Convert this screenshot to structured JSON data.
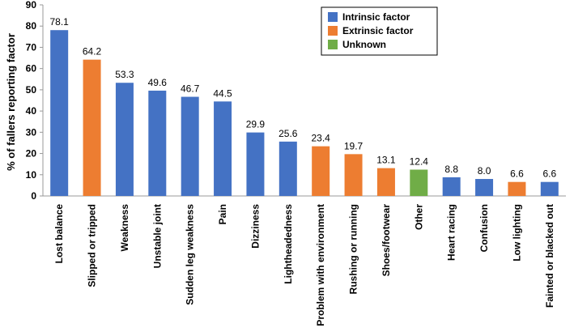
{
  "chart_data": {
    "type": "bar",
    "ylabel": "% of fallers reporting factor",
    "ylim": [
      0,
      90
    ],
    "yticks": [
      0,
      10,
      20,
      30,
      40,
      50,
      60,
      70,
      80,
      90
    ],
    "grid": false,
    "legend_position": "top-right",
    "legend": [
      {
        "name": "Intrinsic factor",
        "color": "#4472C4"
      },
      {
        "name": "Extrinsic factor",
        "color": "#ED7D31"
      },
      {
        "name": "Unknown",
        "color": "#70AD47"
      }
    ],
    "categories": [
      "Lost balance",
      "Slipped or tripped",
      "Weakness",
      "Unstable joint",
      "Sudden leg weakness",
      "Pain",
      "Dizziness",
      "Lightheadedness",
      "Problem with environment",
      "Rushing or running",
      "Shoes/footwear",
      "Other",
      "Heart racing",
      "Confusion",
      "Low lighting",
      "Fainted or blacked out"
    ],
    "values": [
      78.1,
      64.2,
      53.3,
      49.6,
      46.7,
      44.5,
      29.9,
      25.6,
      23.4,
      19.7,
      13.1,
      12.4,
      8.8,
      8.0,
      6.6,
      6.6
    ],
    "value_labels": [
      "78.1",
      "64.2",
      "53.3",
      "49.6",
      "46.7",
      "44.5",
      "29.9",
      "25.6",
      "23.4",
      "19.7",
      "13.1",
      "12.4",
      "8.8",
      "8.0",
      "6.6",
      "6.6"
    ],
    "groups": [
      "Intrinsic factor",
      "Extrinsic factor",
      "Intrinsic factor",
      "Intrinsic factor",
      "Intrinsic factor",
      "Intrinsic factor",
      "Intrinsic factor",
      "Intrinsic factor",
      "Extrinsic factor",
      "Extrinsic factor",
      "Extrinsic factor",
      "Unknown",
      "Intrinsic factor",
      "Intrinsic factor",
      "Extrinsic factor",
      "Intrinsic factor"
    ]
  }
}
